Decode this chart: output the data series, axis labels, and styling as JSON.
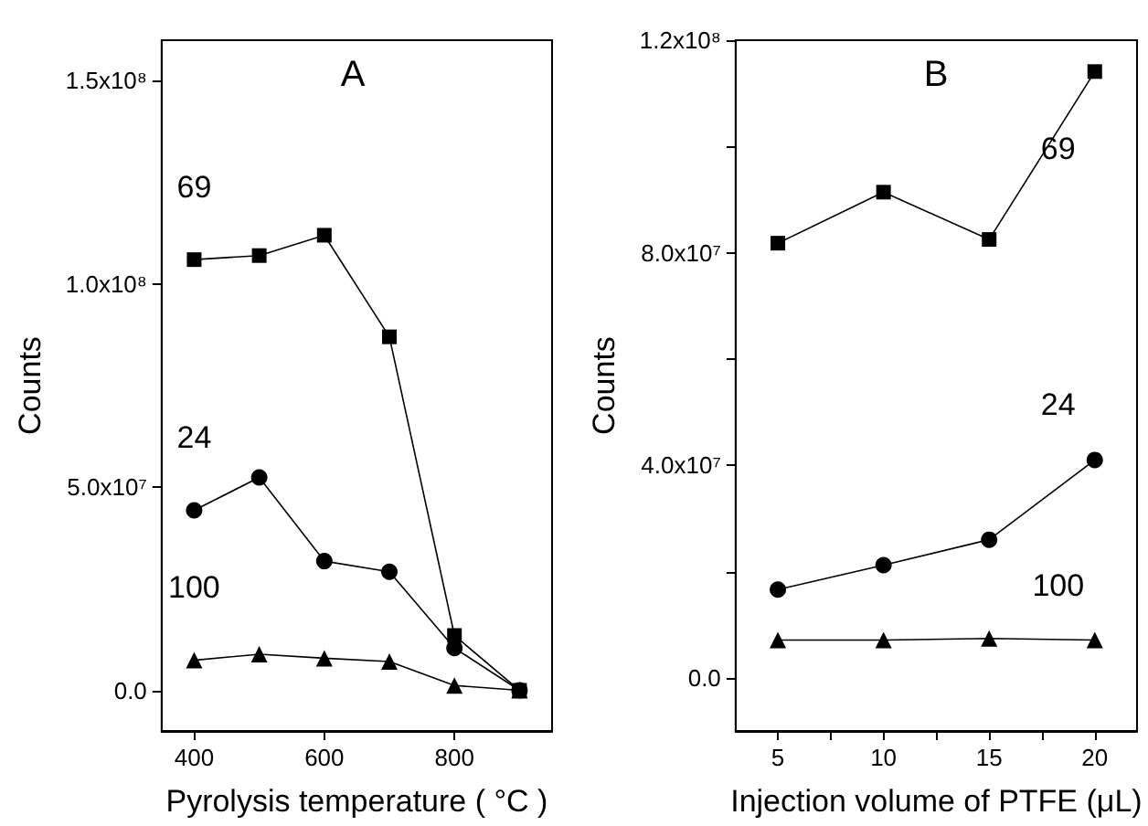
{
  "chart_data": [
    {
      "type": "line",
      "title": "A",
      "xlabel": "Pyrolysis temperature ( °C )",
      "ylabel": "Counts",
      "x": [
        400,
        500,
        600,
        700,
        800,
        900
      ],
      "series": [
        {
          "name": "69",
          "color": "#000000",
          "marker": "square",
          "values": [
            106000000.0,
            107000000.0,
            112000000.0,
            87000000.0,
            13500000.0,
            0
          ]
        },
        {
          "name": "24",
          "color": "#000000",
          "marker": "circle",
          "values": [
            44300000.0,
            52400000.0,
            31800000.0,
            29200000.0,
            10400000.0,
            0
          ]
        },
        {
          "name": "100",
          "color": "#000000",
          "marker": "triangle",
          "values": [
            7400000.0,
            8900000.0,
            7900000.0,
            7100000.0,
            1200000.0,
            0
          ]
        }
      ],
      "xlim": [
        350,
        950
      ],
      "xticks": [
        400,
        600,
        800
      ],
      "ylim": [
        -10000000.0,
        160000000.0
      ],
      "yticks": [
        {
          "value": 0,
          "label": "0.0"
        },
        {
          "value": 50000000.0,
          "label": "5.0x10⁷"
        },
        {
          "value": 100000000.0,
          "label": "1.0x10⁸"
        },
        {
          "value": 150000000.0,
          "label": "1.5x10⁸"
        }
      ],
      "grid": false,
      "legend": false
    },
    {
      "type": "line",
      "title": "B",
      "xlabel": "Injection volume of PTFE (μL)",
      "ylabel": "Counts",
      "x": [
        5,
        10,
        15,
        20
      ],
      "series": [
        {
          "name": "69",
          "color": "#000000",
          "marker": "square",
          "values": [
            81800000.0,
            91400000.0,
            82500000.0,
            114100000.0
          ]
        },
        {
          "name": "24",
          "color": "#000000",
          "marker": "circle",
          "values": [
            16600000.0,
            21200000.0,
            26000000.0,
            41000000.0
          ]
        },
        {
          "name": "100",
          "color": "#000000",
          "marker": "triangle",
          "values": [
            7100000.0,
            7100000.0,
            7400000.0,
            7100000.0
          ]
        }
      ],
      "xlim": [
        3,
        22
      ],
      "xticks": [
        5,
        {
          "value": 7.5,
          "label": null
        },
        10,
        {
          "value": 12.5,
          "label": null
        },
        15,
        {
          "value": 17.5,
          "label": null
        },
        20
      ],
      "ylim": [
        -10000000.0,
        120000000.0
      ],
      "yticks": [
        {
          "value": 0,
          "label": "0.0"
        },
        {
          "value": 20000000.0,
          "label": null
        },
        {
          "value": 40000000.0,
          "label": "4.0x10⁷"
        },
        {
          "value": 60000000.0,
          "label": null
        },
        {
          "value": 80000000.0,
          "label": "8.0x10⁷"
        },
        {
          "value": 100000000.0,
          "label": null
        },
        {
          "value": 120000000.0,
          "label": "1.2x10⁸"
        }
      ],
      "grid": false,
      "legend": false
    }
  ]
}
